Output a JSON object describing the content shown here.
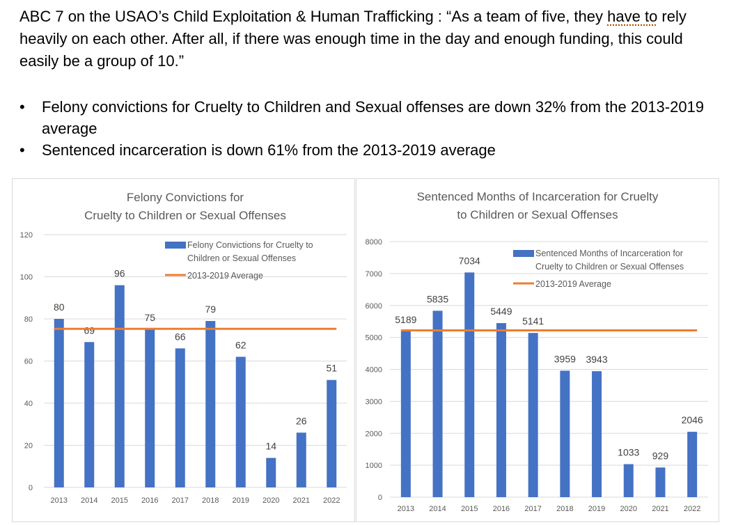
{
  "intro": {
    "source": "ABC 7 on the USAO’s Child Exploitation & Human Trafficking : “As a team of five, they ",
    "underlined": "have to",
    "rest": " rely heavily on each other. After all, if there was enough time in the day and enough funding, this could easily be a group of 10.”"
  },
  "bullets": [
    {
      "dot": "•",
      "text": "Felony convictions for Cruelty to Children and Sexual offenses are down 32%  from the 2013-2019 average"
    },
    {
      "dot": "•",
      "text": "Sentenced incarceration is down 61% from the 2013-2019 average"
    }
  ],
  "colors": {
    "bar": "#4472c4",
    "avg": "#ed7d31",
    "grid": "#d9d9d9",
    "text": "#595959"
  },
  "chart_data": [
    {
      "type": "bar",
      "title": [
        "Felony Convictions for",
        "Cruelty to Children or Sexual Offenses"
      ],
      "categories": [
        "2013",
        "2014",
        "2015",
        "2016",
        "2017",
        "2018",
        "2019",
        "2020",
        "2021",
        "2022"
      ],
      "series": [
        {
          "name": [
            "Felony Convictions for Cruelty to",
            "Children or Sexual Offenses"
          ],
          "values": [
            80,
            69,
            96,
            75,
            66,
            79,
            62,
            14,
            26,
            51
          ]
        }
      ],
      "average": {
        "name": "2013-2019 Average",
        "value": 75.3
      },
      "ylim": [
        0,
        120
      ],
      "yticks": [
        "0",
        "20",
        "40",
        "60",
        "80",
        "100",
        "120"
      ],
      "grid": true,
      "legend": "top-right"
    },
    {
      "type": "bar",
      "title": [
        "Sentenced Months of Incarceration for Cruelty",
        "to Children or Sexual Offenses"
      ],
      "categories": [
        "2013",
        "2014",
        "2015",
        "2016",
        "2017",
        "2018",
        "2019",
        "2020",
        "2021",
        "2022"
      ],
      "series": [
        {
          "name": [
            "Sentenced Months of Incarceration for",
            "Cruelty to Children or Sexual Offenses"
          ],
          "values": [
            5189,
            5835,
            7034,
            5449,
            5141,
            3959,
            3943,
            1033,
            929,
            2046
          ]
        }
      ],
      "average": {
        "name": "2013-2019 Average",
        "value": 5221
      },
      "ylim": [
        0,
        8000
      ],
      "yticks": [
        "0",
        "1000",
        "2000",
        "3000",
        "4000",
        "5000",
        "6000",
        "7000",
        "8000"
      ],
      "grid": true,
      "legend": "top-right"
    }
  ]
}
